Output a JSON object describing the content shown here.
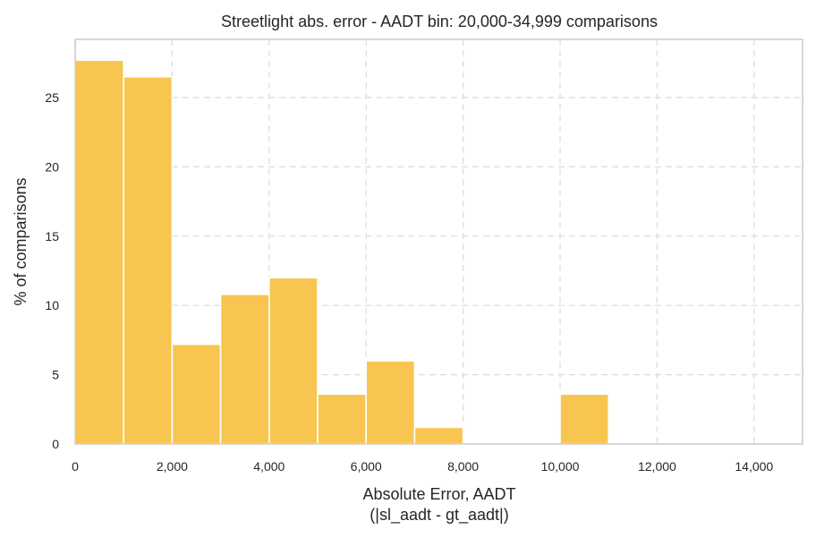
{
  "chart_data": {
    "type": "bar",
    "title": "Streetlight abs. error - AADT bin: 20,000-34,999 comparisons",
    "xlabel_line1": "Absolute Error, AADT",
    "xlabel_line2": "(|sl_aadt - gt_aadt|)",
    "ylabel": "% of comparisons",
    "xlim": [
      0,
      15000
    ],
    "ylim": [
      0,
      29.2
    ],
    "x_ticks": [
      0,
      2000,
      4000,
      6000,
      8000,
      10000,
      12000,
      14000
    ],
    "x_tick_labels": [
      "0",
      "2,000",
      "4,000",
      "6,000",
      "8,000",
      "10,000",
      "12,000",
      "14,000"
    ],
    "y_ticks": [
      0,
      5,
      10,
      15,
      20,
      25
    ],
    "y_tick_labels": [
      "0",
      "5",
      "10",
      "15",
      "20",
      "25"
    ],
    "grid": true,
    "bar_color": "#f7c550",
    "bins": [
      {
        "start": 0,
        "end": 1000,
        "value": 27.7
      },
      {
        "start": 1000,
        "end": 2000,
        "value": 26.5
      },
      {
        "start": 2000,
        "end": 3000,
        "value": 7.2
      },
      {
        "start": 3000,
        "end": 4000,
        "value": 10.8
      },
      {
        "start": 4000,
        "end": 5000,
        "value": 12.0
      },
      {
        "start": 5000,
        "end": 6000,
        "value": 3.6
      },
      {
        "start": 6000,
        "end": 7000,
        "value": 6.0
      },
      {
        "start": 7000,
        "end": 8000,
        "value": 1.2
      },
      {
        "start": 8000,
        "end": 9000,
        "value": 0
      },
      {
        "start": 9000,
        "end": 10000,
        "value": 0
      },
      {
        "start": 10000,
        "end": 11000,
        "value": 3.6
      },
      {
        "start": 11000,
        "end": 12000,
        "value": 0
      },
      {
        "start": 12000,
        "end": 13000,
        "value": 0
      },
      {
        "start": 13000,
        "end": 14000,
        "value": 0
      },
      {
        "start": 14000,
        "end": 15000,
        "value": 0
      }
    ]
  }
}
